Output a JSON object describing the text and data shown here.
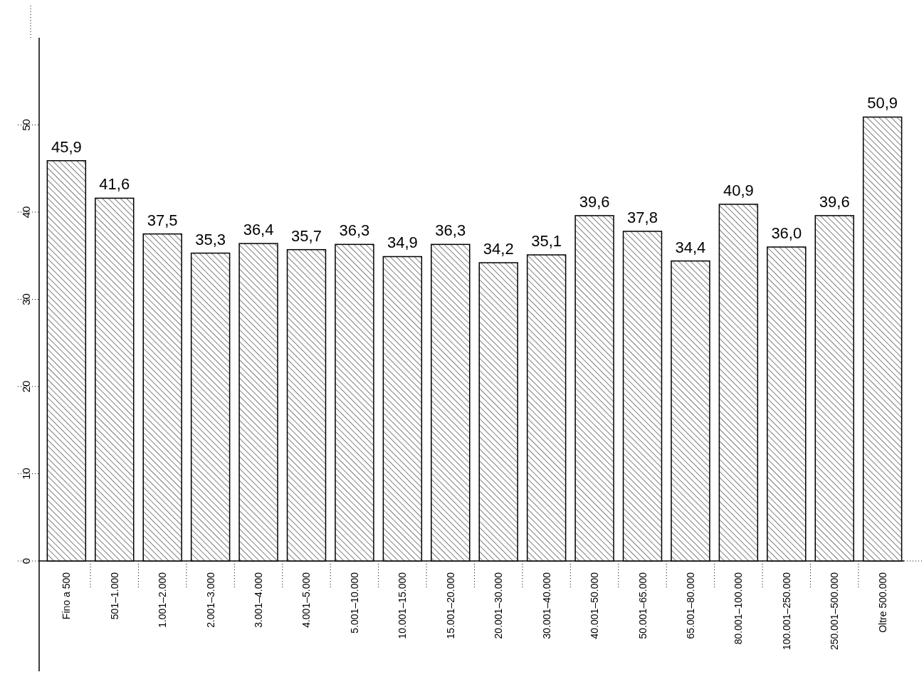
{
  "chart_data": {
    "type": "bar",
    "categories": [
      "Fino a 500",
      "501–1.000",
      "1.001–2.000",
      "2.001–3.000",
      "3.001–4.000",
      "4.001–5.000",
      "5.001–10.000",
      "10.001–15.000",
      "15.001–20.000",
      "20.001–30.000",
      "30.001–40.000",
      "40.001–50.000",
      "50.001–65.000",
      "65.001–80.000",
      "80.001–100.000",
      "100.001–250.000",
      "250.001–500.000",
      "Oltre 500.000"
    ],
    "values": [
      45.9,
      41.6,
      37.5,
      35.3,
      36.4,
      35.7,
      36.3,
      34.9,
      36.3,
      34.2,
      35.1,
      39.6,
      37.8,
      34.4,
      40.9,
      36.0,
      39.6,
      50.9
    ],
    "value_labels": [
      "45,9",
      "41,6",
      "37,5",
      "35,3",
      "36,4",
      "35,7",
      "36,3",
      "34,9",
      "36,3",
      "34,2",
      "35,1",
      "39,6",
      "37,8",
      "34,4",
      "40,9",
      "36,0",
      "39,6",
      "50,9"
    ],
    "color": "#000000",
    "ylim": [
      0,
      60
    ],
    "yticks": [
      0,
      10,
      20,
      30,
      40,
      50
    ],
    "grid": false
  }
}
